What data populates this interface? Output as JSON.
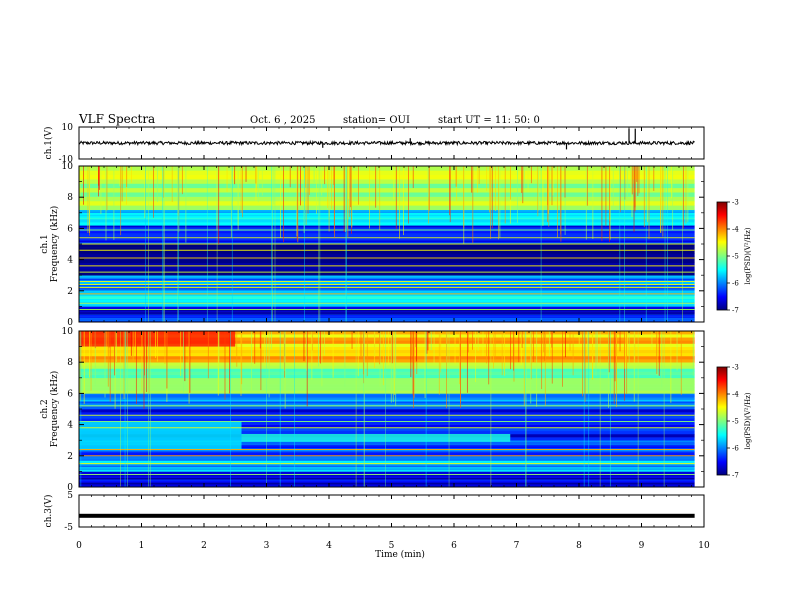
{
  "header": {
    "title": "VLF Spectra",
    "date": "Oct. 6 , 2025",
    "station": "station= OUI",
    "start_ut": "start UT = 11: 50: 0"
  },
  "panels": {
    "ch1_wave": {
      "ylabel": "ch.1(V)",
      "ticks": [
        "10",
        "-10"
      ]
    },
    "ch1_spec": {
      "ylabel_line1": "ch.1",
      "ylabel_line2": "Frequency (kHz)"
    },
    "ch2_spec": {
      "ylabel_line1": "ch.2",
      "ylabel_line2": "Frequency (kHz)"
    },
    "ch3_wave": {
      "ylabel": "ch.3(V)",
      "ticks": [
        "5",
        "-5"
      ]
    },
    "xlabel": "Time (min)",
    "colorbar": {
      "label": "log(PSD)(V²/Hz)",
      "ticks": [
        "-3",
        "-4",
        "-5",
        "-6",
        "-7"
      ]
    }
  },
  "chart_data": [
    {
      "type": "line",
      "id": "ch1_waveform",
      "xlabel": "",
      "ylabel": "ch.1(V)",
      "xlim": [
        0,
        10
      ],
      "ylim": [
        -10,
        10
      ],
      "data_extent_x": [
        0,
        9.85
      ],
      "series": [
        {
          "baseline": 0,
          "amplitude": 1
        }
      ],
      "spikes": [
        {
          "x": 5.3,
          "y": 3
        },
        {
          "x": 8.8,
          "y": 9
        },
        {
          "x": 8.9,
          "y": 9
        },
        {
          "x": 3.9,
          "y": -3
        },
        {
          "x": 7.8,
          "y": -4
        }
      ]
    },
    {
      "type": "heatmap",
      "id": "ch1_spectrogram",
      "xlabel": "",
      "ylabel": "Frequency (kHz)",
      "xlim": [
        0,
        10
      ],
      "ylim": [
        0,
        10
      ],
      "data_extent_x": [
        0,
        9.85
      ],
      "yticks": [
        0,
        2,
        4,
        6,
        8,
        10
      ],
      "colorscale": {
        "label": "log(PSD)(V²/Hz)",
        "range": [
          -7,
          -3
        ],
        "ticks": [
          -3,
          -4,
          -5,
          -6,
          -7
        ]
      },
      "freq_bands": [
        {
          "f0": 0.0,
          "f1": 0.5,
          "level": -6.3
        },
        {
          "f0": 0.5,
          "f1": 1.0,
          "level": -6.8
        },
        {
          "f0": 1.0,
          "f1": 2.0,
          "level": -5.6
        },
        {
          "f0": 2.0,
          "f1": 3.0,
          "level": -6.0
        },
        {
          "f0": 3.0,
          "f1": 5.0,
          "level": -6.9
        },
        {
          "f0": 5.0,
          "f1": 6.2,
          "level": -6.4
        },
        {
          "f0": 6.2,
          "f1": 7.2,
          "level": -5.6
        },
        {
          "f0": 7.2,
          "f1": 10.0,
          "level": -4.8
        }
      ],
      "lines_khz": [
        0.8,
        1.2,
        1.8,
        2.2,
        2.4,
        2.6,
        3.2,
        3.6,
        4.1,
        4.6,
        5.0,
        5.4,
        5.9
      ]
    },
    {
      "type": "heatmap",
      "id": "ch2_spectrogram",
      "xlabel": "",
      "ylabel": "Frequency (kHz)",
      "xlim": [
        0,
        10
      ],
      "ylim": [
        0,
        10
      ],
      "data_extent_x": [
        0,
        9.85
      ],
      "yticks": [
        0,
        2,
        4,
        6,
        8,
        10
      ],
      "colorscale": {
        "label": "log(PSD)(V²/Hz)",
        "range": [
          -7,
          -3
        ],
        "ticks": [
          -3,
          -4,
          -5,
          -6,
          -7
        ]
      },
      "freq_bands": [
        {
          "f0": 0.0,
          "f1": 1.0,
          "level": -6.6
        },
        {
          "f0": 1.0,
          "f1": 2.0,
          "level": -5.8
        },
        {
          "f0": 2.0,
          "f1": 3.0,
          "level": -6.2
        },
        {
          "f0": 3.0,
          "f1": 5.0,
          "level": -6.5
        },
        {
          "f0": 5.0,
          "f1": 6.0,
          "level": -6.0
        },
        {
          "f0": 6.0,
          "f1": 8.0,
          "level": -5.0
        },
        {
          "f0": 8.0,
          "f1": 10.0,
          "level": -4.3
        }
      ],
      "features": [
        {
          "t0": 2.6,
          "t1": 6.9,
          "f0": 2.9,
          "f1": 3.4,
          "level": -5.4
        },
        {
          "t0": 0.0,
          "t1": 2.6,
          "f0": 2.4,
          "f1": 4.2,
          "level": -5.6
        },
        {
          "t0": 0.0,
          "t1": 2.5,
          "f0": 9.0,
          "f1": 10.0,
          "level": -3.6
        }
      ],
      "lines_khz": [
        0.8,
        1.5,
        2.0,
        2.4,
        3.8,
        4.2,
        4.6,
        5.2
      ]
    },
    {
      "type": "line",
      "id": "ch3_waveform",
      "xlabel": "Time (min)",
      "ylabel": "ch.3(V)",
      "xlim": [
        0,
        10
      ],
      "ylim": [
        -5,
        5
      ],
      "xticks": [
        0,
        1,
        2,
        3,
        4,
        5,
        6,
        7,
        8,
        9,
        10
      ],
      "data_extent_x": [
        0,
        9.85
      ],
      "series": [
        {
          "baseline": -1.5,
          "amplitude": 0.15
        }
      ]
    }
  ]
}
